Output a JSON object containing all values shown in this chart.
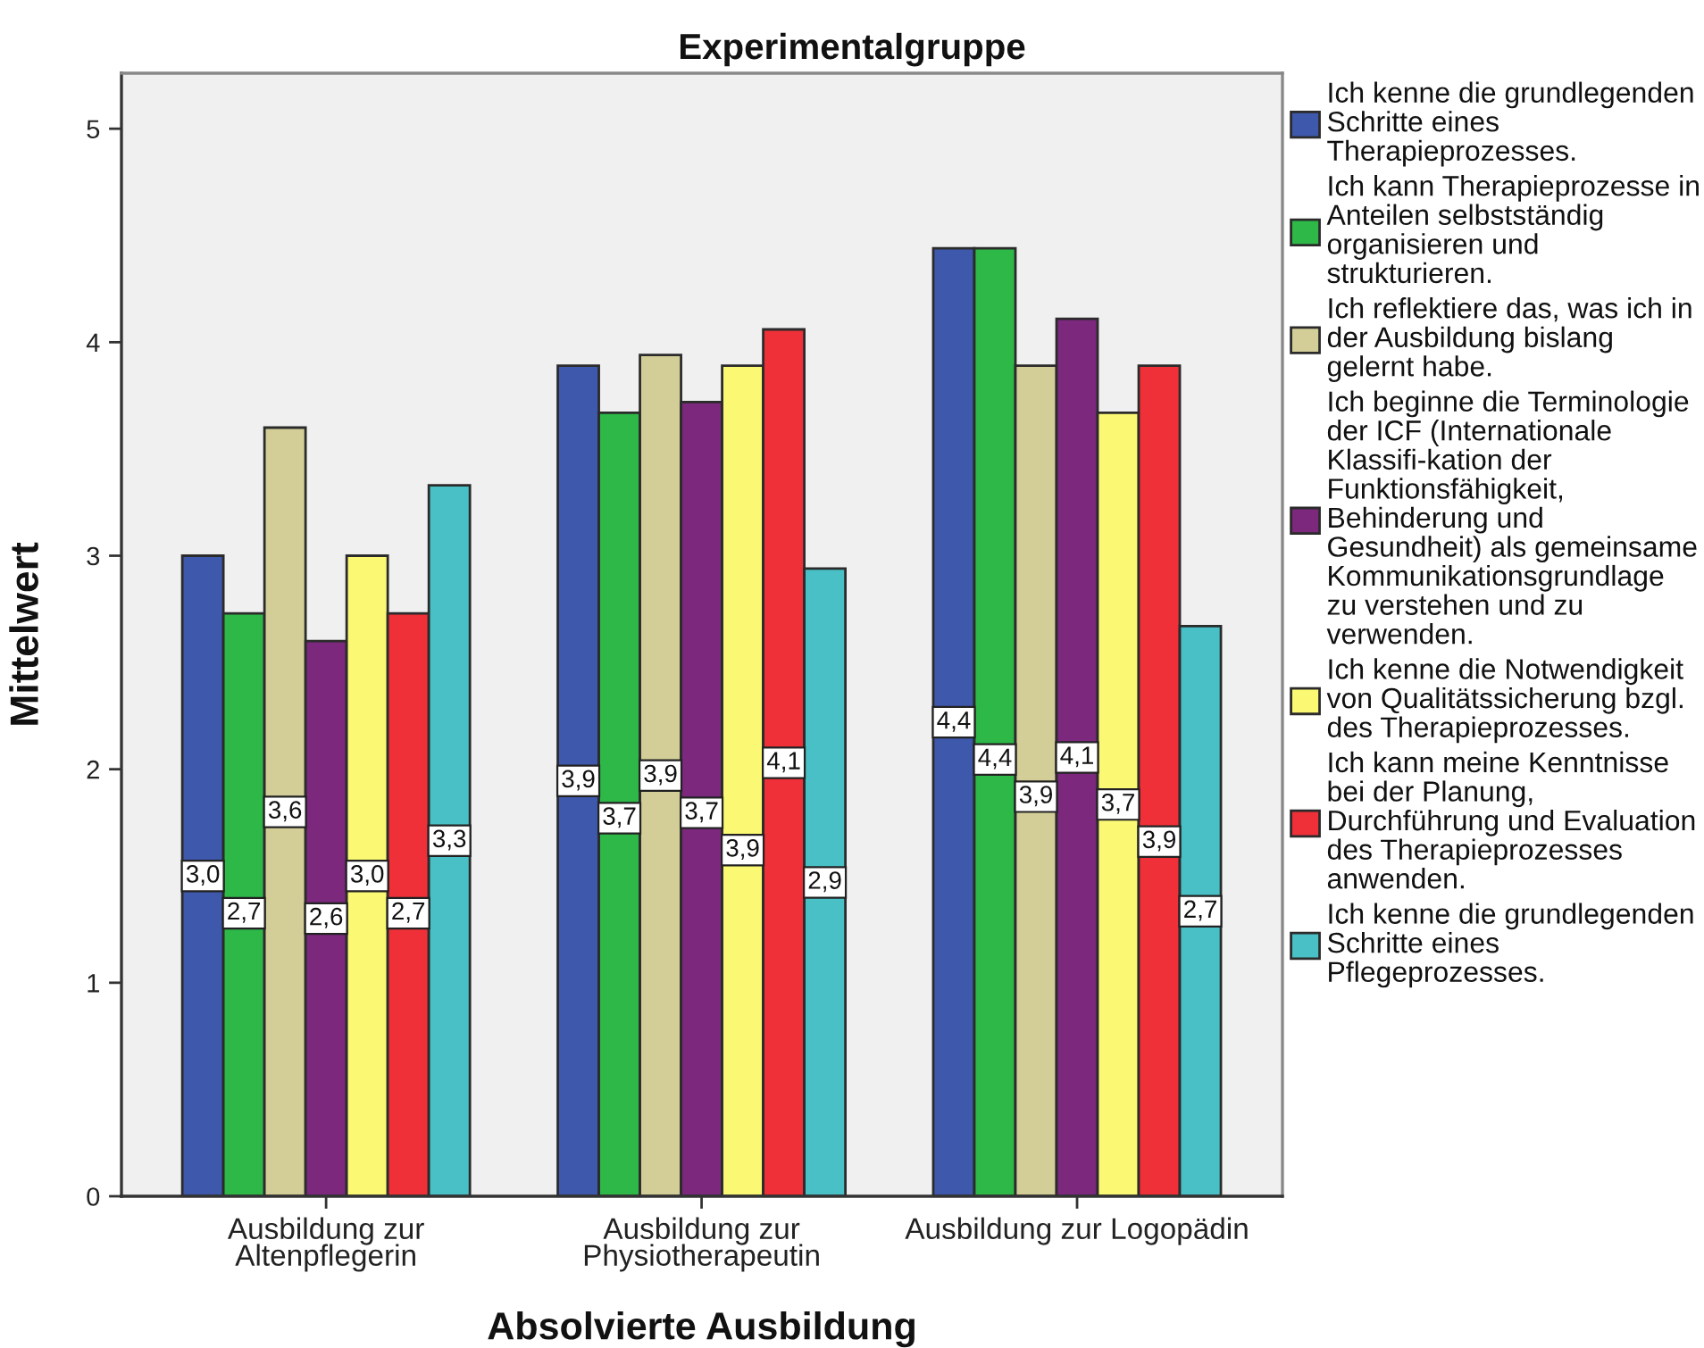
{
  "chart_data": {
    "type": "bar",
    "title": "Experimentalgruppe",
    "xlabel": "Absolvierte Ausbildung",
    "ylabel": "Mittelwert",
    "categories": [
      "Ausbildung zur Altenpflegerin",
      "Ausbildung zur Physiotherapeutin",
      "Ausbildung zur Logopädin"
    ],
    "series": [
      {
        "name": "Ich kenne die grundlegenden Schritte eines Therapieprozesses.",
        "color": "#3e58ac",
        "values": [
          3.0,
          3.89,
          4.44
        ],
        "value_labels": [
          "3,0",
          "3,9",
          "4,4"
        ]
      },
      {
        "name": "Ich kann Therapieprozesse in Anteilen selbstständig organisieren und strukturieren.",
        "color": "#2eb848",
        "values": [
          2.73,
          3.67,
          4.44
        ],
        "value_labels": [
          "2,7",
          "3,7",
          "4,4"
        ]
      },
      {
        "name": "Ich reflektiere das, was ich in der Ausbildung bislang gelernt habe.",
        "color": "#d3ce97",
        "values": [
          3.6,
          3.94,
          3.89
        ],
        "value_labels": [
          "3,6",
          "3,9",
          "3,9"
        ]
      },
      {
        "name": "Ich beginne die Terminologie der ICF (Internationale Klassifi-kation der Funktionsfähigkeit, Behinderung und Gesundheit) als gemeinsame Kommunikationsgrundlage zu verstehen und zu verwenden.",
        "color": "#7b287d",
        "values": [
          2.6,
          3.72,
          4.11
        ],
        "value_labels": [
          "2,6",
          "3,7",
          "4,1"
        ]
      },
      {
        "name": "Ich kenne die Notwendigkeit von Qualitätssicherung bzgl. des Therapieprozesses.",
        "color": "#fbf873",
        "values": [
          3.0,
          3.89,
          3.67
        ],
        "value_labels": [
          "3,0",
          "3,9",
          "3,7"
        ]
      },
      {
        "name": "Ich kann meine Kenntnisse bei der Planung, Durchführung und Evaluation des Therapieprozesses anwenden.",
        "color": "#ef3038",
        "values": [
          2.73,
          4.06,
          3.89
        ],
        "value_labels": [
          "2,7",
          "4,1",
          "3,9"
        ]
      },
      {
        "name": "Ich kenne die grundlegenden Schritte eines Pflegeprozesses.",
        "color": "#48c0c5",
        "values": [
          3.33,
          2.94,
          2.67
        ],
        "value_labels": [
          "3,3",
          "2,9",
          "2,7"
        ]
      }
    ],
    "ylim": [
      0,
      5.26
    ],
    "yticks": [
      0,
      1,
      2,
      3,
      4,
      5
    ],
    "legend": "right"
  }
}
